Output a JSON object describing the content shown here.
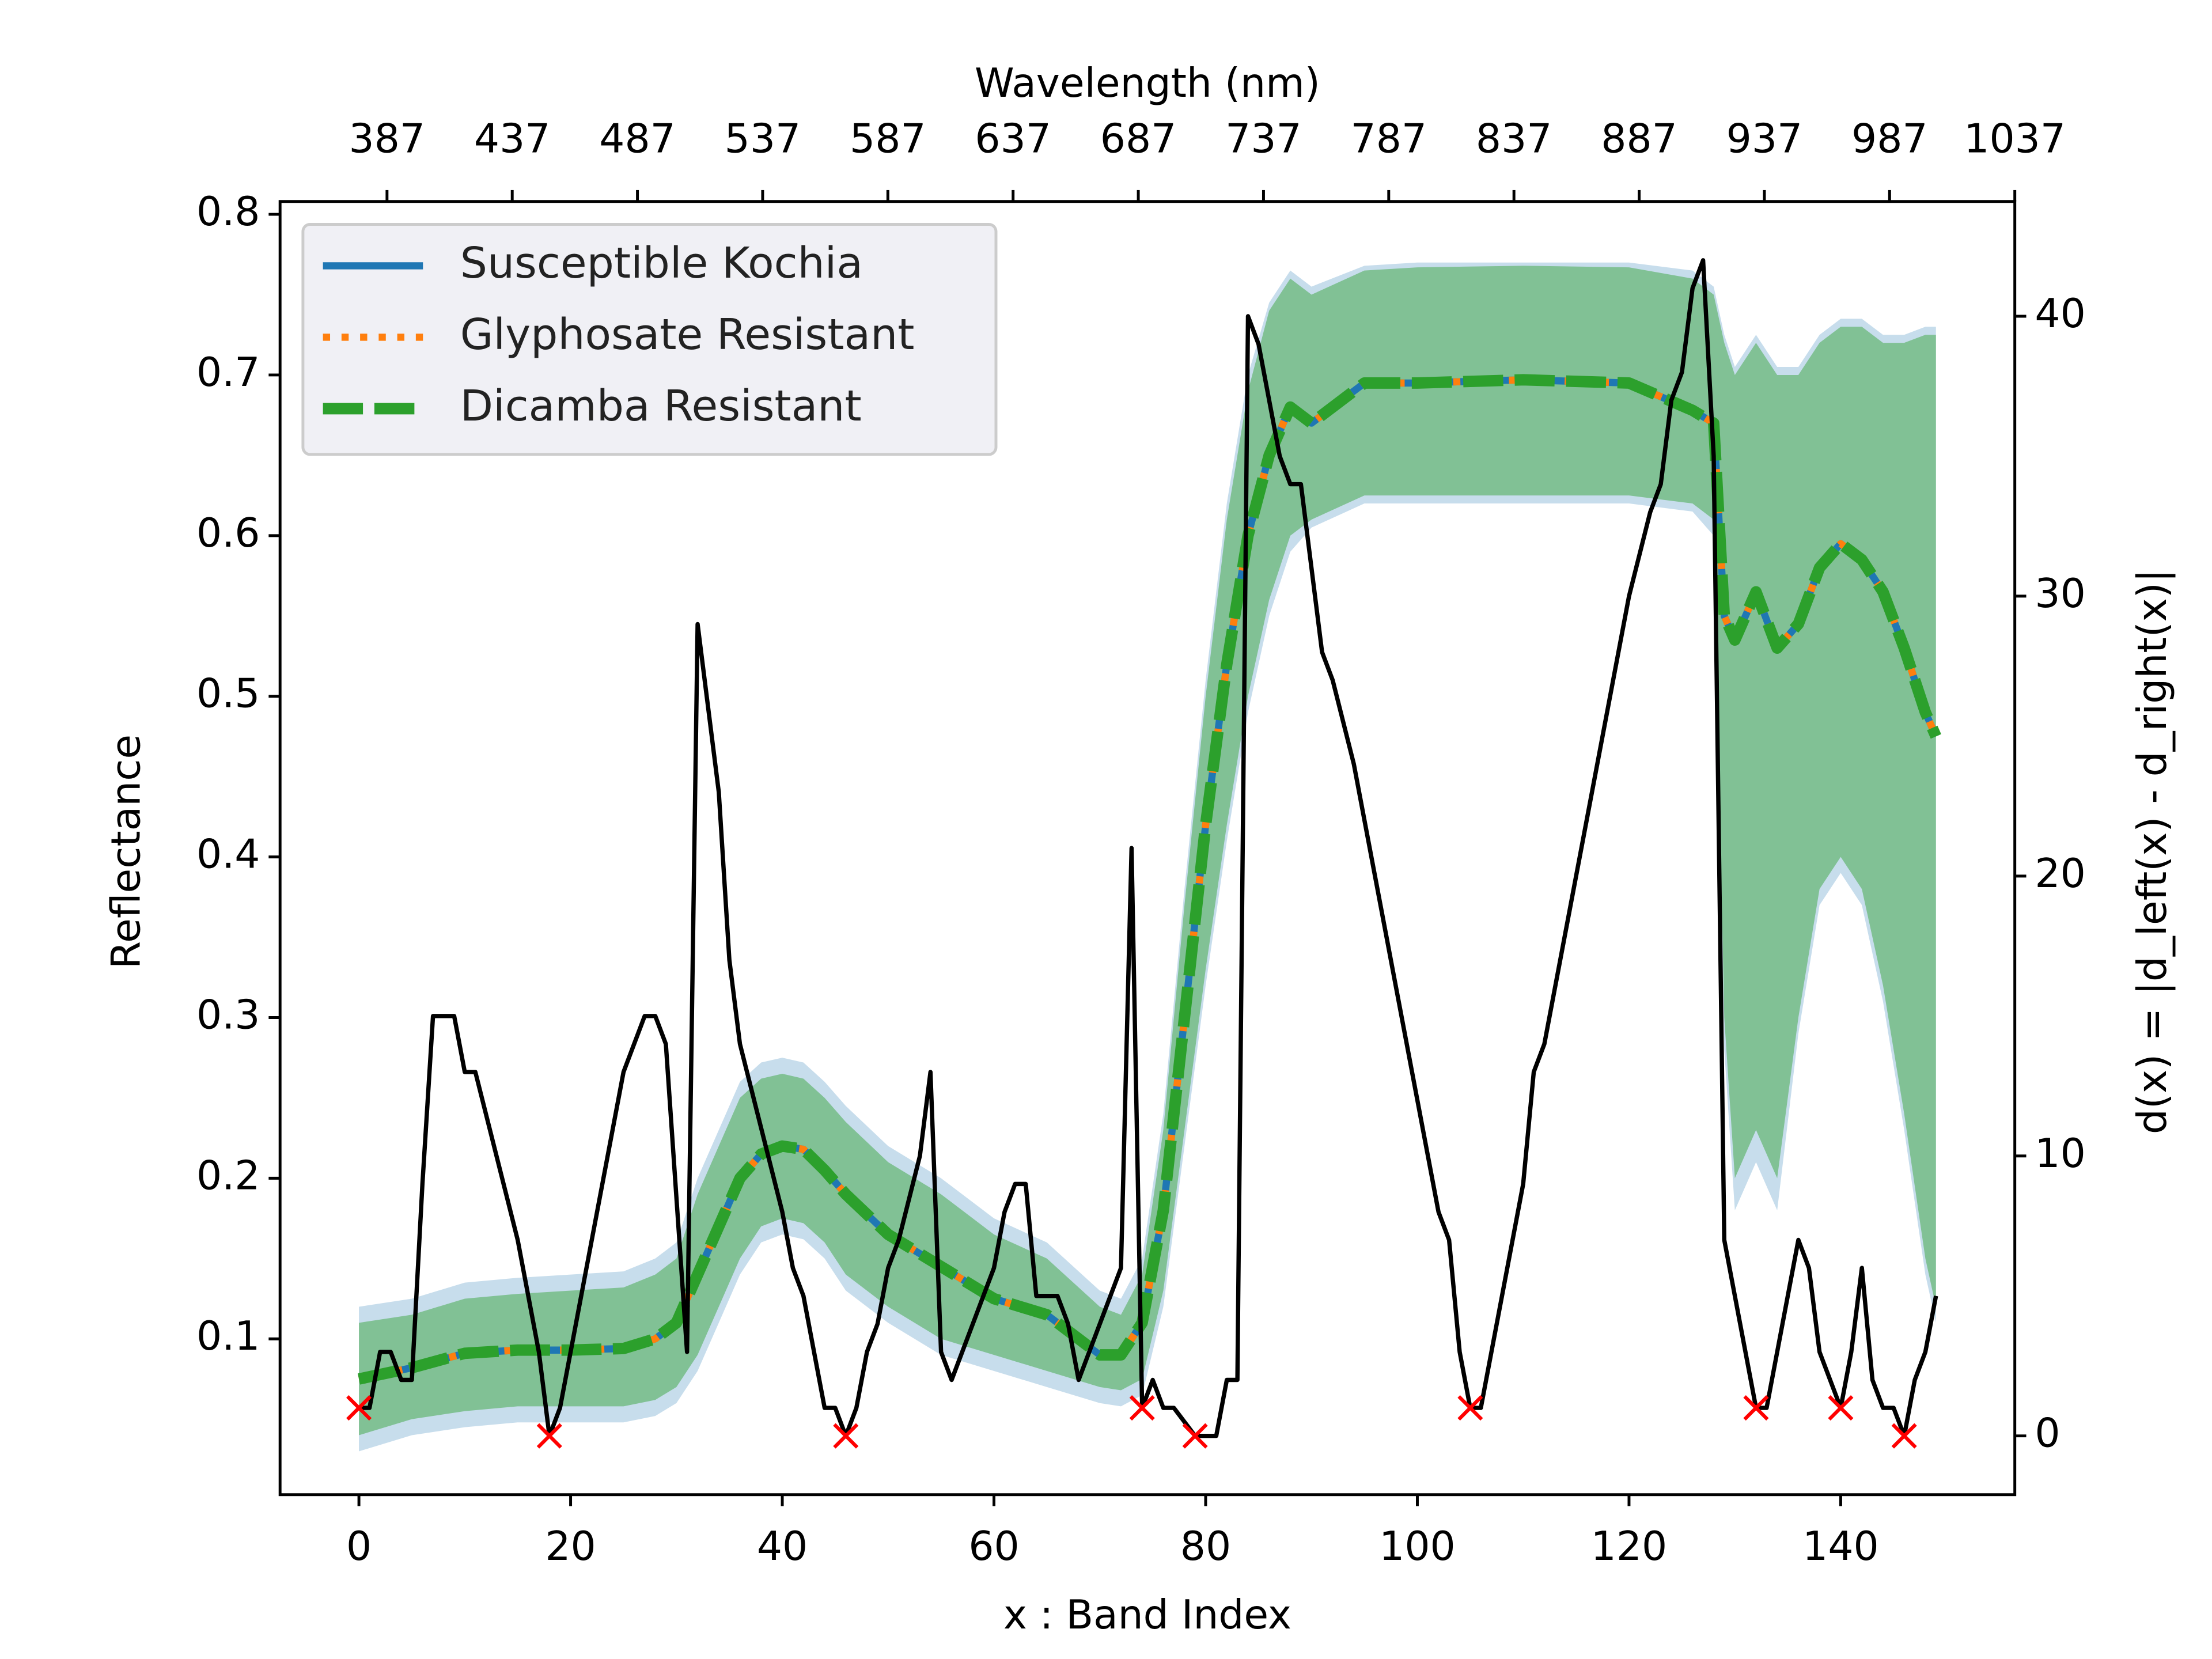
{
  "chart_data": {
    "type": "line",
    "xlabel": "x : Band Index",
    "ylabel": "Reflectance",
    "y2label": "d(x) = |d_left(x) - d_right(x)|",
    "x2label": "Wavelength (nm)",
    "xlim": [
      -7.45,
      156.45
    ],
    "ylim": [
      0.003,
      0.808
    ],
    "y2lim": [
      -2.1,
      44.1
    ],
    "x2lim": [
      344.3,
      1037
    ],
    "xticks": [
      0,
      20,
      40,
      60,
      80,
      100,
      120,
      140
    ],
    "yticks": [
      0.1,
      0.2,
      0.3,
      0.4,
      0.5,
      0.6,
      0.7,
      0.8
    ],
    "y2ticks": [
      0,
      10,
      20,
      30,
      40
    ],
    "x2ticks": [
      387,
      437,
      487,
      537,
      587,
      637,
      687,
      737,
      787,
      837,
      887,
      937,
      987,
      1037
    ],
    "legend": "upper left",
    "x": [
      0,
      5,
      10,
      15,
      20,
      25,
      28,
      30,
      32,
      34,
      36,
      38,
      40,
      42,
      44,
      46,
      50,
      55,
      60,
      65,
      70,
      72,
      74,
      76,
      78,
      80,
      82,
      84,
      86,
      88,
      90,
      95,
      100,
      110,
      120,
      126,
      128,
      129,
      130,
      132,
      134,
      136,
      138,
      140,
      142,
      144,
      146,
      148,
      149
    ],
    "series": [
      {
        "name": "Susceptible Kochia",
        "color": "#1f77b4",
        "style": "solid",
        "values": [
          0.075,
          0.082,
          0.091,
          0.093,
          0.093,
          0.094,
          0.1,
          0.11,
          0.14,
          0.17,
          0.2,
          0.215,
          0.22,
          0.218,
          0.205,
          0.19,
          0.165,
          0.145,
          0.125,
          0.115,
          0.09,
          0.09,
          0.11,
          0.18,
          0.3,
          0.42,
          0.52,
          0.6,
          0.65,
          0.68,
          0.67,
          0.695,
          0.695,
          0.697,
          0.695,
          0.678,
          0.67,
          0.55,
          0.535,
          0.565,
          0.53,
          0.545,
          0.58,
          0.595,
          0.585,
          0.565,
          0.53,
          0.49,
          0.475
        ],
        "lower": [
          0.03,
          0.04,
          0.045,
          0.048,
          0.048,
          0.048,
          0.052,
          0.06,
          0.08,
          0.11,
          0.14,
          0.16,
          0.165,
          0.162,
          0.15,
          0.13,
          0.11,
          0.09,
          0.08,
          0.07,
          0.06,
          0.058,
          0.065,
          0.12,
          0.22,
          0.32,
          0.41,
          0.49,
          0.55,
          0.59,
          0.605,
          0.62,
          0.62,
          0.62,
          0.62,
          0.615,
          0.6,
          0.28,
          0.18,
          0.21,
          0.18,
          0.29,
          0.37,
          0.39,
          0.37,
          0.31,
          0.23,
          0.14,
          0.11
        ],
        "upper": [
          0.12,
          0.125,
          0.135,
          0.138,
          0.14,
          0.142,
          0.15,
          0.16,
          0.2,
          0.23,
          0.26,
          0.272,
          0.275,
          0.272,
          0.26,
          0.245,
          0.22,
          0.2,
          0.175,
          0.16,
          0.13,
          0.125,
          0.15,
          0.24,
          0.38,
          0.51,
          0.62,
          0.7,
          0.745,
          0.765,
          0.755,
          0.768,
          0.77,
          0.77,
          0.77,
          0.765,
          0.755,
          0.725,
          0.705,
          0.725,
          0.705,
          0.705,
          0.725,
          0.735,
          0.735,
          0.725,
          0.725,
          0.73,
          0.73
        ]
      },
      {
        "name": "Glyphosate Resistant",
        "color": "#ff7f0e",
        "style": "dotted",
        "values": [
          0.075,
          0.082,
          0.091,
          0.093,
          0.093,
          0.094,
          0.1,
          0.11,
          0.14,
          0.17,
          0.2,
          0.215,
          0.22,
          0.218,
          0.205,
          0.19,
          0.165,
          0.145,
          0.125,
          0.115,
          0.09,
          0.09,
          0.11,
          0.18,
          0.3,
          0.42,
          0.52,
          0.6,
          0.65,
          0.68,
          0.67,
          0.695,
          0.695,
          0.697,
          0.695,
          0.678,
          0.67,
          0.55,
          0.535,
          0.565,
          0.53,
          0.545,
          0.58,
          0.595,
          0.585,
          0.565,
          0.53,
          0.49,
          0.475
        ]
      },
      {
        "name": "Dicamba Resistant",
        "color": "#2ca02c",
        "style": "dashed",
        "values": [
          0.075,
          0.082,
          0.091,
          0.093,
          0.093,
          0.094,
          0.1,
          0.11,
          0.14,
          0.17,
          0.2,
          0.215,
          0.22,
          0.218,
          0.205,
          0.19,
          0.165,
          0.145,
          0.125,
          0.115,
          0.09,
          0.09,
          0.11,
          0.18,
          0.3,
          0.42,
          0.52,
          0.6,
          0.65,
          0.68,
          0.67,
          0.695,
          0.695,
          0.697,
          0.695,
          0.678,
          0.67,
          0.55,
          0.535,
          0.565,
          0.53,
          0.545,
          0.58,
          0.595,
          0.585,
          0.565,
          0.53,
          0.49,
          0.475
        ],
        "lower": [
          0.04,
          0.05,
          0.055,
          0.058,
          0.058,
          0.058,
          0.062,
          0.07,
          0.09,
          0.12,
          0.15,
          0.17,
          0.175,
          0.172,
          0.16,
          0.14,
          0.12,
          0.1,
          0.09,
          0.08,
          0.07,
          0.068,
          0.075,
          0.13,
          0.23,
          0.33,
          0.42,
          0.5,
          0.56,
          0.6,
          0.61,
          0.625,
          0.625,
          0.625,
          0.625,
          0.62,
          0.61,
          0.3,
          0.2,
          0.23,
          0.2,
          0.3,
          0.38,
          0.4,
          0.38,
          0.32,
          0.24,
          0.15,
          0.12
        ],
        "upper": [
          0.11,
          0.115,
          0.125,
          0.128,
          0.13,
          0.132,
          0.14,
          0.15,
          0.19,
          0.22,
          0.25,
          0.262,
          0.265,
          0.262,
          0.25,
          0.235,
          0.21,
          0.19,
          0.165,
          0.15,
          0.12,
          0.115,
          0.14,
          0.23,
          0.37,
          0.5,
          0.61,
          0.69,
          0.74,
          0.76,
          0.75,
          0.765,
          0.767,
          0.768,
          0.767,
          0.76,
          0.75,
          0.72,
          0.7,
          0.72,
          0.7,
          0.7,
          0.72,
          0.73,
          0.73,
          0.72,
          0.72,
          0.725,
          0.725
        ]
      }
    ],
    "distance": {
      "color": "#000000",
      "axis": "y2",
      "x": [
        0,
        1,
        2,
        3,
        4,
        5,
        6,
        7,
        8,
        9,
        10,
        11,
        13,
        15,
        17,
        18,
        19,
        21,
        23,
        25,
        27,
        28,
        29,
        31,
        32,
        34,
        35,
        36,
        38,
        40,
        41,
        42,
        43,
        44,
        45,
        46,
        47,
        48,
        49,
        50,
        51,
        53,
        54,
        55,
        56,
        58,
        59,
        60,
        61,
        62,
        63,
        64,
        65,
        66,
        67,
        68,
        70,
        72,
        73,
        74,
        75,
        76,
        77,
        78,
        79,
        80,
        81,
        82,
        83,
        84,
        85,
        86,
        87,
        88,
        89,
        90,
        91,
        92,
        94,
        96,
        98,
        100,
        102,
        103,
        104,
        105,
        106,
        108,
        110,
        111,
        112,
        116,
        120,
        122,
        123,
        124,
        125,
        126,
        127,
        128,
        129,
        130,
        132,
        133,
        134,
        136,
        137,
        138,
        140,
        141,
        142,
        143,
        144,
        145,
        146,
        147,
        148,
        149
      ],
      "values": [
        1,
        1,
        3,
        3,
        2,
        2,
        9,
        15,
        15,
        15,
        13,
        13,
        10,
        7,
        3,
        0,
        1,
        5,
        9,
        13,
        15,
        15,
        14,
        3,
        29,
        23,
        17,
        14,
        11,
        8,
        6,
        5,
        3,
        1,
        1,
        0,
        1,
        3,
        4,
        6,
        7,
        10,
        13,
        3,
        2,
        4,
        5,
        6,
        8,
        9,
        9,
        5,
        5,
        5,
        4,
        2,
        4,
        6,
        21,
        1,
        2,
        1,
        1,
        0.5,
        0,
        0,
        0,
        2,
        2,
        40,
        39,
        37,
        35,
        34,
        34,
        31,
        28,
        27,
        24,
        20,
        16,
        12,
        8,
        7,
        3,
        1,
        1,
        5,
        9,
        13,
        14,
        22,
        30,
        33,
        34,
        37,
        38,
        41,
        42,
        35,
        7,
        5,
        1,
        1,
        3,
        7,
        6,
        3,
        1,
        3,
        6,
        2,
        1,
        1,
        0,
        2,
        3,
        5
      ]
    },
    "minima": {
      "color": "#ff0000",
      "marker": "x",
      "axis": "y2",
      "x": [
        0,
        18,
        46,
        74,
        79,
        105,
        132,
        140,
        146
      ],
      "values": [
        1,
        0,
        0,
        1,
        0,
        1,
        1,
        1,
        0
      ]
    }
  }
}
